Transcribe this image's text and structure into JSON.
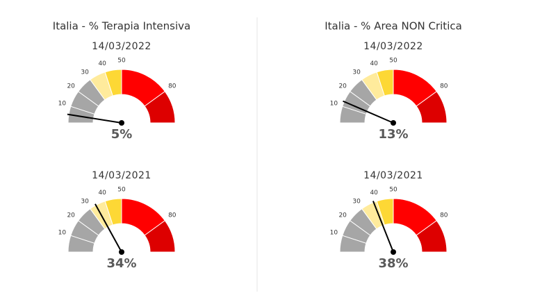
{
  "chart_data": [
    {
      "type": "gauge",
      "title": "Italia - % Terapia Intensiva",
      "subtitle": "14/03/2022",
      "value": 5,
      "value_label": "5%",
      "range": [
        0,
        100
      ],
      "ticks": [
        10,
        20,
        30,
        40,
        50,
        80
      ],
      "bands": [
        {
          "from": 0,
          "to": 10,
          "color": "#a6a6a6"
        },
        {
          "from": 10,
          "to": 20,
          "color": "#a6a6a6"
        },
        {
          "from": 20,
          "to": 30,
          "color": "#a6a6a6"
        },
        {
          "from": 30,
          "to": 40,
          "color": "#ffeb9c"
        },
        {
          "from": 40,
          "to": 50,
          "color": "#fdd835"
        },
        {
          "from": 50,
          "to": 80,
          "color": "#ff0000"
        },
        {
          "from": 80,
          "to": 100,
          "color": "#dd0000"
        }
      ],
      "needle_color": "#000000"
    },
    {
      "type": "gauge",
      "subtitle": "14/03/2021",
      "value": 34,
      "value_label": "34%",
      "range": [
        0,
        100
      ],
      "ticks": [
        10,
        20,
        30,
        40,
        50,
        80
      ],
      "bands": [
        {
          "from": 0,
          "to": 10,
          "color": "#a6a6a6"
        },
        {
          "from": 10,
          "to": 20,
          "color": "#a6a6a6"
        },
        {
          "from": 20,
          "to": 30,
          "color": "#a6a6a6"
        },
        {
          "from": 30,
          "to": 40,
          "color": "#ffeb9c"
        },
        {
          "from": 40,
          "to": 50,
          "color": "#fdd835"
        },
        {
          "from": 50,
          "to": 80,
          "color": "#ff0000"
        },
        {
          "from": 80,
          "to": 100,
          "color": "#dd0000"
        }
      ],
      "needle_color": "#000000"
    },
    {
      "type": "gauge",
      "title": "Italia - % Area NON Critica",
      "subtitle": "14/03/2022",
      "value": 13,
      "value_label": "13%",
      "range": [
        0,
        100
      ],
      "ticks": [
        10,
        20,
        30,
        40,
        50,
        80
      ],
      "bands": [
        {
          "from": 0,
          "to": 10,
          "color": "#a6a6a6"
        },
        {
          "from": 10,
          "to": 20,
          "color": "#a6a6a6"
        },
        {
          "from": 20,
          "to": 30,
          "color": "#a6a6a6"
        },
        {
          "from": 30,
          "to": 40,
          "color": "#ffeb9c"
        },
        {
          "from": 40,
          "to": 50,
          "color": "#fdd835"
        },
        {
          "from": 50,
          "to": 80,
          "color": "#ff0000"
        },
        {
          "from": 80,
          "to": 100,
          "color": "#dd0000"
        }
      ],
      "needle_color": "#000000"
    },
    {
      "type": "gauge",
      "subtitle": "14/03/2021",
      "value": 38,
      "value_label": "38%",
      "range": [
        0,
        100
      ],
      "ticks": [
        10,
        20,
        30,
        40,
        50,
        80
      ],
      "bands": [
        {
          "from": 0,
          "to": 10,
          "color": "#a6a6a6"
        },
        {
          "from": 10,
          "to": 20,
          "color": "#a6a6a6"
        },
        {
          "from": 20,
          "to": 30,
          "color": "#a6a6a6"
        },
        {
          "from": 30,
          "to": 40,
          "color": "#ffeb9c"
        },
        {
          "from": 40,
          "to": 50,
          "color": "#fdd835"
        },
        {
          "from": 50,
          "to": 80,
          "color": "#ff0000"
        },
        {
          "from": 80,
          "to": 100,
          "color": "#dd0000"
        }
      ],
      "needle_color": "#000000"
    }
  ]
}
